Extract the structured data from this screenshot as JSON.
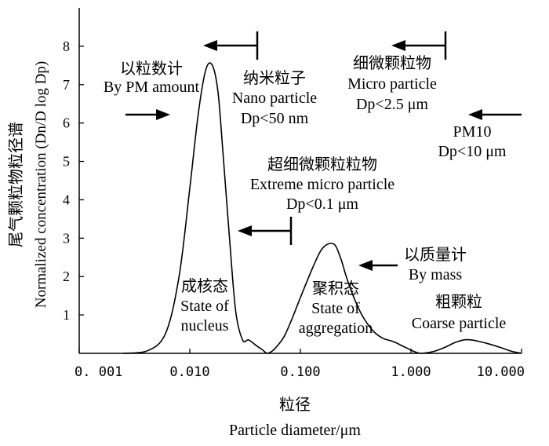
{
  "chart_data": {
    "type": "line",
    "x_scale": "log",
    "xlim": [
      0.001,
      10.0
    ],
    "ylim": [
      0,
      9
    ],
    "grid": false,
    "legend": "none",
    "ylabel_cn": "尾气颗粒物粒径谱",
    "ylabel": "Normalized concentration (Dn/D log Dp)",
    "xlabel_cn": "粒径",
    "xlabel": "Particle diameter/μm",
    "yticks": [
      1,
      2,
      3,
      4,
      5,
      6,
      7,
      8
    ],
    "xticks": [
      {
        "value": 0.001,
        "label": "0. 001"
      },
      {
        "value": 0.01,
        "label": "0.010"
      },
      {
        "value": 0.1,
        "label": "0.100"
      },
      {
        "value": 1,
        "label": "1.000"
      },
      {
        "value": 10,
        "label": "10.000"
      }
    ],
    "series": [
      {
        "x": [
          0.0025,
          0.004,
          0.006,
          0.008,
          0.01,
          0.012,
          0.014,
          0.016,
          0.018,
          0.02,
          0.023,
          0.026,
          0.03,
          0.034,
          0.04,
          0.045,
          0.05,
          0.055,
          0.06,
          0.07,
          0.08,
          0.1,
          0.13,
          0.16,
          0.2,
          0.23,
          0.26,
          0.3,
          0.36,
          0.45,
          0.55,
          0.7,
          0.9,
          1.2,
          1.6,
          2.0,
          2.5,
          3.0,
          3.5,
          4.0,
          5.0,
          6.5,
          8.0,
          10.0
        ],
        "y": [
          0.0,
          0.05,
          0.5,
          2.0,
          4.3,
          6.3,
          7.4,
          7.5,
          6.8,
          5.2,
          2.9,
          1.1,
          0.35,
          0.35,
          0.2,
          0.1,
          0.0,
          0.05,
          0.15,
          0.4,
          0.75,
          1.45,
          2.25,
          2.75,
          2.85,
          2.5,
          2.0,
          1.5,
          1.0,
          0.6,
          0.4,
          0.3,
          0.15,
          0.0,
          0.05,
          0.15,
          0.28,
          0.35,
          0.35,
          0.32,
          0.25,
          0.15,
          0.06,
          0.0
        ]
      }
    ],
    "annotations": [
      {
        "lines": [
          "以粒数计",
          "By PM amount"
        ]
      },
      {
        "lines": [
          "纳米粒子",
          "Nano particle",
          "Dp<50 nm"
        ]
      },
      {
        "lines": [
          "细微颗粒物",
          "Micro particle",
          "Dp<2.5 μm"
        ]
      },
      {
        "lines": [
          "PM10",
          "Dp<10 μm"
        ]
      },
      {
        "lines": [
          "超细微颗粒粒物",
          "Extreme micro particle",
          "Dp<0.1 μm"
        ]
      },
      {
        "lines": [
          "以质量计",
          "By mass"
        ]
      },
      {
        "lines": [
          "成核态",
          "State of",
          "nucleus"
        ]
      },
      {
        "lines": [
          "聚积态",
          "State of",
          "aggregation"
        ]
      },
      {
        "lines": [
          "粗颗粒",
          "Coarse particle"
        ]
      }
    ]
  }
}
